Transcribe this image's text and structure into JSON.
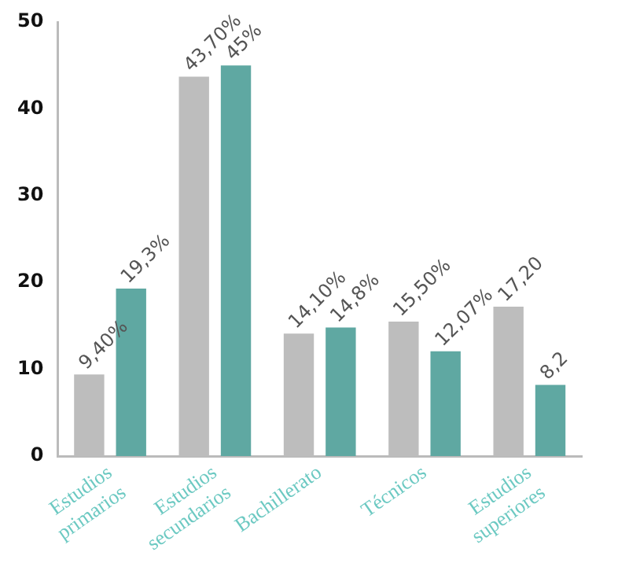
{
  "chart_data": {
    "type": "bar",
    "categories": [
      "Estudios primarios",
      "Estudios secundarios",
      "Bachillerato",
      "Técnicos",
      "Estudios superiores"
    ],
    "series": [
      {
        "color": "#bdbdbd",
        "values": [
          9.4,
          43.7,
          14.1,
          15.5,
          17.2
        ],
        "value_labels": [
          "9,40%",
          "43,70%",
          "14,10%",
          "15,50%",
          "17,20"
        ]
      },
      {
        "color": "#5fa8a2",
        "values": [
          19.3,
          45,
          14.8,
          12.07,
          8.2
        ],
        "value_labels": [
          "19,3%",
          "45%",
          "14,8%",
          "12,07%",
          "8,2"
        ]
      }
    ],
    "ylim": [
      0,
      50
    ],
    "yticks": [
      0,
      10,
      20,
      30,
      40,
      50
    ],
    "grid": false,
    "legend": false
  }
}
